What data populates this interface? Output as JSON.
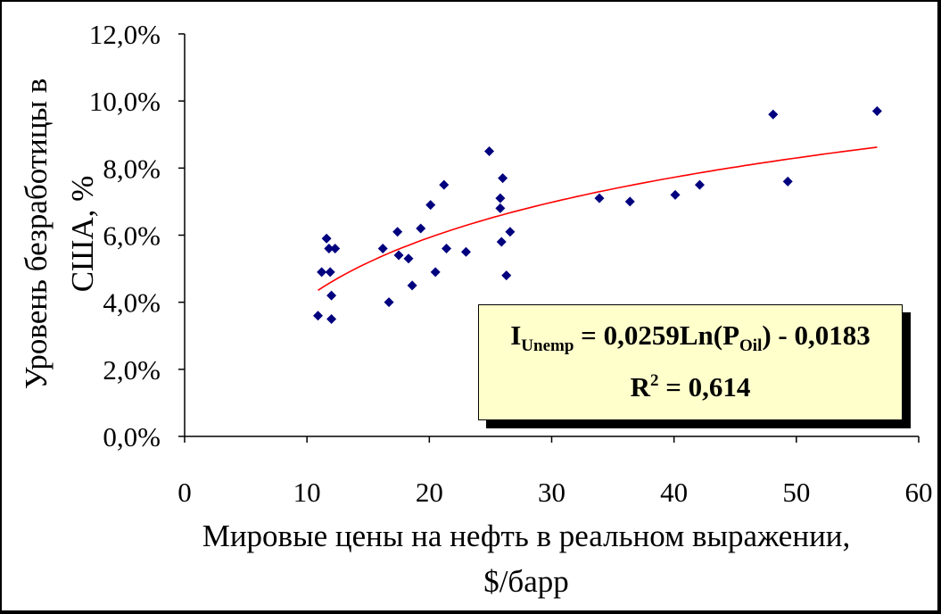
{
  "chart_data": {
    "type": "scatter",
    "title": "",
    "xlabel_line1": "Мировые цены на нефть в реальном выражении,",
    "xlabel_line2": "$/барр",
    "ylabel_line1": "Уровень безработицы в",
    "ylabel_line2": "США, %",
    "xlim": [
      0,
      60
    ],
    "ylim": [
      0.0,
      0.12
    ],
    "x_ticks": [
      0,
      10,
      20,
      30,
      40,
      50,
      60
    ],
    "x_tick_labels": [
      "0",
      "10",
      "20",
      "30",
      "40",
      "50",
      "60"
    ],
    "y_ticks": [
      0.0,
      0.02,
      0.04,
      0.06,
      0.08,
      0.1,
      0.12
    ],
    "y_tick_labels": [
      "0,0%",
      "2,0%",
      "4,0%",
      "6,0%",
      "8,0%",
      "10,0%",
      "12,0%"
    ],
    "grid": false,
    "colors": {
      "points": "#00007f",
      "trendline": "#ff0000",
      "annotation_fill": "#ffffcc"
    },
    "points": [
      {
        "x": 10.9,
        "y": 0.036
      },
      {
        "x": 11.2,
        "y": 0.049
      },
      {
        "x": 11.6,
        "y": 0.059
      },
      {
        "x": 11.8,
        "y": 0.056
      },
      {
        "x": 11.9,
        "y": 0.049
      },
      {
        "x": 12.0,
        "y": 0.042
      },
      {
        "x": 12.0,
        "y": 0.035
      },
      {
        "x": 12.3,
        "y": 0.056
      },
      {
        "x": 16.2,
        "y": 0.056
      },
      {
        "x": 16.7,
        "y": 0.04
      },
      {
        "x": 17.4,
        "y": 0.061
      },
      {
        "x": 17.5,
        "y": 0.054
      },
      {
        "x": 18.3,
        "y": 0.053
      },
      {
        "x": 18.6,
        "y": 0.045
      },
      {
        "x": 19.3,
        "y": 0.062
      },
      {
        "x": 20.1,
        "y": 0.069
      },
      {
        "x": 20.5,
        "y": 0.049
      },
      {
        "x": 21.2,
        "y": 0.075
      },
      {
        "x": 21.4,
        "y": 0.056
      },
      {
        "x": 23.0,
        "y": 0.055
      },
      {
        "x": 24.9,
        "y": 0.085
      },
      {
        "x": 25.8,
        "y": 0.071
      },
      {
        "x": 25.8,
        "y": 0.068
      },
      {
        "x": 25.9,
        "y": 0.058
      },
      {
        "x": 26.0,
        "y": 0.077
      },
      {
        "x": 26.3,
        "y": 0.048
      },
      {
        "x": 26.6,
        "y": 0.061
      },
      {
        "x": 33.9,
        "y": 0.071
      },
      {
        "x": 36.4,
        "y": 0.07
      },
      {
        "x": 40.1,
        "y": 0.072
      },
      {
        "x": 42.1,
        "y": 0.075
      },
      {
        "x": 48.1,
        "y": 0.096
      },
      {
        "x": 49.3,
        "y": 0.076
      },
      {
        "x": 56.6,
        "y": 0.097
      }
    ],
    "trendline": {
      "type": "log",
      "a": 0.0259,
      "b": -0.0183,
      "x_range": [
        10.9,
        56.6
      ]
    },
    "annotation": {
      "eq_lhs": "I",
      "eq_lhs_sub": "Unemp",
      "eq_mid": " = 0,0259Ln(P",
      "eq_mid_sub": "Oil",
      "eq_rhs": ") - 0,0183",
      "r2_lhs": "R",
      "r2_sup": "2",
      "r2_rhs": " = 0,614"
    }
  }
}
